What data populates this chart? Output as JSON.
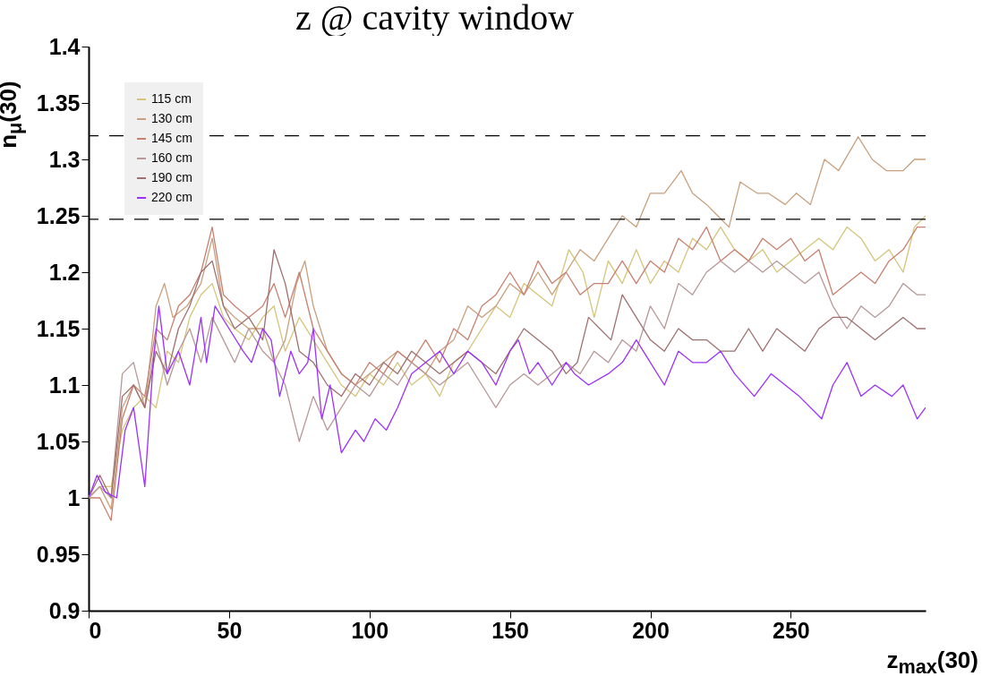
{
  "chart_data": {
    "type": "line",
    "title": "z @ cavity window",
    "xlabel": "z$_{max}$(30)",
    "ylabel": "n$_{μ}$(30)",
    "xlim": [
      0,
      298
    ],
    "xticks": [
      0,
      50,
      100,
      150,
      200,
      250
    ],
    "ylim": [
      0.9,
      1.4
    ],
    "yticks": [
      0.9,
      0.95,
      1,
      1.05,
      1.1,
      1.15,
      1.2,
      1.25,
      1.3,
      1.35,
      1.4
    ],
    "legend": "top left",
    "ref_lines": [
      {
        "axis": "y",
        "value": 1.321,
        "color": "#000000",
        "line_style": "dashed"
      },
      {
        "axis": "y",
        "value": 1.247,
        "color": "#000000",
        "line_style": "dashed"
      }
    ],
    "series": [
      {
        "name": "115 cm",
        "color": "#d4c57a",
        "x": [
          0,
          4,
          8,
          12,
          16,
          20,
          24,
          28,
          32,
          36,
          40,
          44,
          48,
          52,
          57,
          62,
          66,
          70,
          75,
          80,
          85,
          90,
          95,
          100,
          105,
          110,
          115,
          120,
          125,
          130,
          135,
          140,
          145,
          150,
          155,
          160,
          165,
          171,
          176,
          180,
          185,
          190,
          195,
          200,
          205,
          210,
          215,
          220,
          225,
          230,
          235,
          240,
          245,
          250,
          255,
          260,
          265,
          270,
          275,
          280,
          285,
          290,
          294,
          298
        ],
        "values": [
          1.0,
          1.01,
          1.01,
          1.06,
          1.08,
          1.09,
          1.08,
          1.13,
          1.12,
          1.16,
          1.18,
          1.19,
          1.16,
          1.15,
          1.14,
          1.16,
          1.17,
          1.13,
          1.16,
          1.14,
          1.12,
          1.1,
          1.09,
          1.11,
          1.1,
          1.12,
          1.1,
          1.11,
          1.09,
          1.12,
          1.13,
          1.15,
          1.17,
          1.16,
          1.19,
          1.18,
          1.17,
          1.22,
          1.2,
          1.16,
          1.21,
          1.19,
          1.22,
          1.19,
          1.21,
          1.2,
          1.23,
          1.22,
          1.24,
          1.22,
          1.21,
          1.22,
          1.2,
          1.21,
          1.22,
          1.23,
          1.22,
          1.24,
          1.23,
          1.21,
          1.22,
          1.2,
          1.24,
          1.25
        ]
      },
      {
        "name": "130 cm",
        "color": "#c8a07e",
        "x": [
          0,
          4,
          8,
          12,
          16,
          20,
          24,
          27,
          30,
          35,
          40,
          44,
          48,
          52,
          57,
          62,
          66,
          70,
          74,
          77,
          80,
          85,
          90,
          95,
          100,
          105,
          110,
          115,
          120,
          125,
          130,
          135,
          140,
          145,
          150,
          155,
          160,
          165,
          170,
          175,
          180,
          185,
          190,
          195,
          200,
          205,
          211,
          215,
          220,
          224,
          228,
          232,
          238,
          242,
          248,
          252,
          257,
          262,
          267,
          274,
          279,
          284,
          290,
          294,
          298
        ],
        "values": [
          1.0,
          1.01,
          0.99,
          1.08,
          1.1,
          1.08,
          1.17,
          1.19,
          1.16,
          1.17,
          1.19,
          1.23,
          1.17,
          1.16,
          1.15,
          1.15,
          1.12,
          1.14,
          1.19,
          1.21,
          1.17,
          1.13,
          1.11,
          1.1,
          1.11,
          1.12,
          1.13,
          1.12,
          1.11,
          1.13,
          1.14,
          1.17,
          1.16,
          1.17,
          1.19,
          1.18,
          1.2,
          1.18,
          1.2,
          1.22,
          1.21,
          1.23,
          1.25,
          1.24,
          1.27,
          1.27,
          1.29,
          1.27,
          1.26,
          1.25,
          1.24,
          1.28,
          1.27,
          1.27,
          1.26,
          1.27,
          1.26,
          1.3,
          1.29,
          1.32,
          1.3,
          1.29,
          1.29,
          1.3,
          1.3
        ]
      },
      {
        "name": "145 cm",
        "color": "#c88070",
        "x": [
          0,
          4,
          8,
          12,
          16,
          20,
          24,
          28,
          32,
          36,
          40,
          44,
          48,
          52,
          57,
          62,
          66,
          70,
          75,
          80,
          85,
          90,
          95,
          100,
          105,
          110,
          115,
          120,
          125,
          130,
          135,
          140,
          145,
          150,
          155,
          160,
          165,
          170,
          175,
          180,
          185,
          190,
          195,
          200,
          205,
          210,
          215,
          220,
          225,
          230,
          235,
          240,
          245,
          250,
          255,
          260,
          265,
          270,
          275,
          280,
          285,
          290,
          295,
          298
        ],
        "values": [
          1.0,
          1.0,
          0.98,
          1.07,
          1.1,
          1.09,
          1.15,
          1.14,
          1.17,
          1.18,
          1.2,
          1.24,
          1.18,
          1.17,
          1.16,
          1.17,
          1.19,
          1.16,
          1.2,
          1.15,
          1.13,
          1.11,
          1.1,
          1.12,
          1.11,
          1.13,
          1.12,
          1.14,
          1.12,
          1.15,
          1.14,
          1.17,
          1.18,
          1.2,
          1.18,
          1.21,
          1.19,
          1.2,
          1.18,
          1.19,
          1.19,
          1.21,
          1.19,
          1.21,
          1.2,
          1.23,
          1.22,
          1.24,
          1.21,
          1.22,
          1.21,
          1.23,
          1.22,
          1.23,
          1.21,
          1.22,
          1.18,
          1.19,
          1.2,
          1.19,
          1.21,
          1.22,
          1.24,
          1.24
        ]
      },
      {
        "name": "160 cm",
        "color": "#b89898",
        "x": [
          0,
          4,
          8,
          12,
          16,
          20,
          24,
          28,
          32,
          36,
          40,
          44,
          48,
          52,
          57,
          62,
          66,
          70,
          75,
          80,
          85,
          90,
          95,
          100,
          105,
          110,
          115,
          120,
          125,
          130,
          135,
          140,
          145,
          150,
          155,
          160,
          165,
          170,
          175,
          180,
          185,
          190,
          195,
          200,
          205,
          210,
          215,
          220,
          225,
          230,
          235,
          240,
          245,
          250,
          255,
          260,
          265,
          270,
          275,
          280,
          285,
          290,
          295,
          298
        ],
        "values": [
          1.0,
          1.01,
          1.0,
          1.11,
          1.12,
          1.08,
          1.14,
          1.1,
          1.13,
          1.15,
          1.12,
          1.16,
          1.14,
          1.12,
          1.15,
          1.13,
          1.12,
          1.1,
          1.05,
          1.09,
          1.06,
          1.08,
          1.1,
          1.09,
          1.11,
          1.1,
          1.12,
          1.11,
          1.1,
          1.11,
          1.12,
          1.1,
          1.08,
          1.1,
          1.11,
          1.1,
          1.11,
          1.12,
          1.11,
          1.13,
          1.12,
          1.14,
          1.13,
          1.17,
          1.15,
          1.19,
          1.18,
          1.2,
          1.21,
          1.2,
          1.21,
          1.2,
          1.21,
          1.2,
          1.19,
          1.2,
          1.17,
          1.15,
          1.17,
          1.16,
          1.17,
          1.19,
          1.18,
          1.18
        ]
      },
      {
        "name": "190 cm",
        "color": "#a07070",
        "x": [
          0,
          4,
          8,
          12,
          16,
          20,
          24,
          28,
          32,
          36,
          40,
          44,
          48,
          52,
          57,
          62,
          66,
          70,
          75,
          80,
          85,
          90,
          95,
          100,
          105,
          110,
          115,
          120,
          125,
          130,
          135,
          140,
          145,
          150,
          155,
          160,
          165,
          170,
          174,
          178,
          182,
          186,
          190,
          195,
          200,
          205,
          210,
          215,
          220,
          225,
          230,
          235,
          240,
          245,
          250,
          255,
          260,
          265,
          270,
          275,
          280,
          285,
          290,
          295,
          298
        ],
        "values": [
          1.0,
          1.02,
          1.0,
          1.09,
          1.1,
          1.08,
          1.13,
          1.11,
          1.15,
          1.17,
          1.2,
          1.21,
          1.17,
          1.15,
          1.16,
          1.14,
          1.22,
          1.19,
          1.13,
          1.12,
          1.1,
          1.09,
          1.11,
          1.1,
          1.12,
          1.11,
          1.13,
          1.12,
          1.11,
          1.12,
          1.13,
          1.12,
          1.11,
          1.13,
          1.15,
          1.14,
          1.13,
          1.11,
          1.12,
          1.16,
          1.15,
          1.14,
          1.18,
          1.16,
          1.14,
          1.13,
          1.15,
          1.14,
          1.14,
          1.13,
          1.13,
          1.15,
          1.13,
          1.15,
          1.14,
          1.13,
          1.15,
          1.16,
          1.16,
          1.15,
          1.14,
          1.15,
          1.16,
          1.15,
          1.15
        ]
      },
      {
        "name": "220 cm",
        "color": "#9b30ff",
        "x": [
          0,
          3,
          6,
          10,
          13,
          16,
          20,
          23,
          25,
          28,
          32,
          36,
          40,
          42,
          45,
          50,
          55,
          58,
          62,
          65,
          68,
          72,
          75,
          78,
          80,
          83,
          86,
          90,
          95,
          98,
          102,
          106,
          110,
          115,
          120,
          125,
          130,
          135,
          140,
          145,
          150,
          153,
          157,
          160,
          165,
          170,
          173,
          178,
          185,
          190,
          195,
          200,
          205,
          210,
          215,
          220,
          225,
          230,
          237,
          243,
          248,
          253,
          261,
          265,
          270,
          275,
          280,
          286,
          290,
          295,
          298
        ],
        "values": [
          1.0,
          1.02,
          1.005,
          1.0,
          1.06,
          1.08,
          1.01,
          1.12,
          1.17,
          1.11,
          1.13,
          1.1,
          1.16,
          1.12,
          1.17,
          1.15,
          1.13,
          1.12,
          1.15,
          1.14,
          1.09,
          1.13,
          1.11,
          1.12,
          1.15,
          1.07,
          1.1,
          1.04,
          1.06,
          1.05,
          1.07,
          1.06,
          1.08,
          1.11,
          1.12,
          1.13,
          1.11,
          1.13,
          1.12,
          1.1,
          1.13,
          1.14,
          1.11,
          1.12,
          1.1,
          1.12,
          1.11,
          1.1,
          1.11,
          1.12,
          1.14,
          1.12,
          1.1,
          1.13,
          1.12,
          1.12,
          1.13,
          1.11,
          1.09,
          1.11,
          1.1,
          1.09,
          1.07,
          1.1,
          1.12,
          1.09,
          1.1,
          1.09,
          1.1,
          1.07,
          1.08
        ]
      }
    ]
  }
}
